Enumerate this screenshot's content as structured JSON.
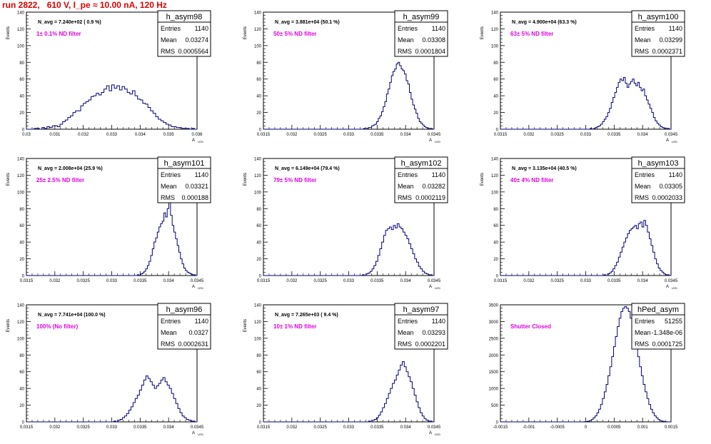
{
  "page_title": "run 2822,   610 V, I_pe ≈ 10.00 nA, 120 Hz",
  "colors": {
    "title": "#e00000",
    "annotation": "#e000e0",
    "histogram": "#00007a",
    "axis": "#000000"
  },
  "chart_data": [
    {
      "type": "histogram",
      "stat_name": "h_asym98",
      "stats": [
        [
          "Entries",
          "1140"
        ],
        [
          "Mean",
          "0.03274"
        ],
        [
          "RMS",
          "0.0005564"
        ]
      ],
      "navg_label": "N_avg = 7.240e+02 ( 0.9 %)",
      "filter_label": "1± 0.1% ND filter",
      "xlabel": "A",
      "xlabel_sub": "LED",
      "ylabel": "Events",
      "xlim": [
        0.03,
        0.036
      ],
      "ylim": [
        0,
        140
      ],
      "xticks": [
        "0.03",
        "0.031",
        "0.032",
        "0.033",
        "0.034",
        "0.035",
        "0.036"
      ],
      "yticks": [
        "0",
        "20",
        "40",
        "60",
        "80",
        "100",
        "120",
        "140"
      ],
      "counts": [
        0,
        0,
        0,
        1,
        1,
        0,
        2,
        1,
        3,
        2,
        4,
        4,
        3,
        6,
        9,
        11,
        14,
        16,
        20,
        22,
        22,
        28,
        31,
        33,
        35,
        39,
        40,
        43,
        41,
        44,
        48,
        52,
        46,
        53,
        49,
        52,
        47,
        51,
        48,
        44,
        42,
        46,
        40,
        36,
        35,
        31,
        30,
        26,
        22,
        19,
        15,
        12,
        10,
        8,
        6,
        5,
        3,
        3,
        2,
        2,
        1,
        1,
        1,
        0,
        1,
        0
      ]
    },
    {
      "type": "histogram",
      "stat_name": "h_asym99",
      "stats": [
        [
          "Entries",
          "1140"
        ],
        [
          "Mean",
          "0.03308"
        ],
        [
          "RMS",
          "0.0001804"
        ]
      ],
      "navg_label": "N_avg = 3.881e+04 (50.1 %)",
      "filter_label": "50± 5% ND filter",
      "xlabel": "A",
      "xlabel_sub": "LED",
      "ylabel": "Events",
      "xlim": [
        0.0315,
        0.0345
      ],
      "ylim": [
        0,
        140
      ],
      "xticks": [
        "0.0315",
        "0.032",
        "0.0325",
        "0.033",
        "0.0335",
        "0.034",
        "0.0345"
      ],
      "yticks": [
        "0",
        "20",
        "40",
        "60",
        "80",
        "100",
        "120",
        "140"
      ],
      "counts": [
        0,
        0,
        0,
        0,
        0,
        0,
        0,
        0,
        0,
        0,
        0,
        0,
        0,
        0,
        0,
        0,
        0,
        0,
        0,
        0,
        0,
        0,
        0,
        0,
        0,
        0,
        0,
        0,
        0,
        0,
        0,
        0,
        0,
        0,
        0,
        0,
        0,
        0,
        0,
        0,
        0,
        0,
        0,
        0,
        0,
        0,
        0,
        0,
        0,
        0,
        0,
        0,
        0,
        0,
        0,
        0,
        0,
        0,
        0,
        0,
        0,
        1,
        0,
        1,
        2,
        2,
        4,
        5,
        6,
        9,
        13,
        16,
        21,
        27,
        33,
        42,
        48,
        56,
        64,
        69,
        72,
        78,
        80,
        76,
        72,
        70,
        66,
        58,
        54,
        44,
        36,
        29,
        24,
        19,
        13,
        9,
        7,
        5,
        3,
        2,
        1,
        1,
        1,
        0
      ]
    },
    {
      "type": "histogram",
      "stat_name": "h_asym100",
      "stats": [
        [
          "Entries",
          "1140"
        ],
        [
          "Mean",
          "0.03299"
        ],
        [
          "RMS",
          "0.0002371"
        ]
      ],
      "navg_label": "N_avg = 4.900e+04 (63.3 %)",
      "filter_label": "63± 5% ND filter",
      "xlabel": "A",
      "xlabel_sub": "LED",
      "ylabel": "Events",
      "xlim": [
        0.0315,
        0.0345
      ],
      "ylim": [
        0,
        140
      ],
      "xticks": [
        "0.0315",
        "0.032",
        "0.0325",
        "0.033",
        "0.0335",
        "0.034",
        "0.0345"
      ],
      "yticks": [
        "0",
        "20",
        "40",
        "60",
        "80",
        "100",
        "120",
        "140"
      ],
      "counts": [
        0,
        0,
        0,
        0,
        0,
        0,
        0,
        0,
        0,
        0,
        0,
        0,
        0,
        0,
        0,
        0,
        0,
        0,
        0,
        0,
        0,
        0,
        0,
        0,
        0,
        0,
        0,
        0,
        0,
        0,
        0,
        0,
        0,
        0,
        0,
        0,
        0,
        0,
        0,
        0,
        0,
        0,
        0,
        0,
        0,
        0,
        0,
        0,
        0,
        0,
        0,
        1,
        0,
        1,
        2,
        3,
        4,
        6,
        9,
        12,
        15,
        20,
        25,
        32,
        38,
        44,
        50,
        56,
        60,
        58,
        62,
        55,
        50,
        54,
        57,
        60,
        55,
        52,
        56,
        50,
        46,
        48,
        40,
        35,
        30,
        25,
        20,
        14,
        10,
        7,
        5,
        3,
        2,
        1,
        1,
        1,
        0
      ]
    },
    {
      "type": "histogram",
      "stat_name": "h_asym101",
      "stats": [
        [
          "Entries",
          "1140"
        ],
        [
          "Mean",
          "0.03321"
        ],
        [
          "RMS",
          "0.000188"
        ]
      ],
      "navg_label": "N_avg = 2.008e+04 (25.9 %)",
      "filter_label": "25± 2.5% ND filter",
      "xlabel": "A",
      "xlabel_sub": "LED",
      "ylabel": "Events",
      "xlim": [
        0.0315,
        0.0345
      ],
      "ylim": [
        0,
        140
      ],
      "xticks": [
        "0.0315",
        "0.032",
        "0.0325",
        "0.033",
        "0.0335",
        "0.034",
        "0.0345"
      ],
      "yticks": [
        "0",
        "20",
        "40",
        "60",
        "80",
        "100",
        "120",
        "140"
      ],
      "counts": [
        0,
        0,
        0,
        0,
        0,
        0,
        0,
        0,
        0,
        0,
        0,
        0,
        0,
        0,
        0,
        0,
        0,
        0,
        0,
        0,
        0,
        0,
        0,
        0,
        0,
        0,
        0,
        0,
        0,
        0,
        0,
        0,
        0,
        0,
        0,
        0,
        0,
        0,
        0,
        0,
        0,
        0,
        0,
        0,
        0,
        0,
        0,
        0,
        0,
        0,
        0,
        0,
        0,
        0,
        0,
        0,
        0,
        0,
        0,
        0,
        0,
        0,
        0,
        0,
        0,
        0,
        0,
        1,
        0,
        2,
        3,
        5,
        8,
        12,
        17,
        24,
        32,
        40,
        45,
        52,
        58,
        62,
        65,
        75,
        70,
        80,
        98,
        72,
        60,
        52,
        44,
        36,
        28,
        20,
        14,
        9,
        6,
        4,
        3,
        2,
        1,
        1,
        0
      ]
    },
    {
      "type": "histogram",
      "stat_name": "h_asym102",
      "stats": [
        [
          "Entries",
          "1140"
        ],
        [
          "Mean",
          "0.03282"
        ],
        [
          "RMS",
          "0.0002119"
        ]
      ],
      "navg_label": "N_avg = 6.149e+04 (79.4 %)",
      "filter_label": "79± 5% ND filter",
      "xlabel": "A",
      "xlabel_sub": "LED",
      "ylabel": "Events",
      "xlim": [
        0.0315,
        0.0345
      ],
      "ylim": [
        0,
        140
      ],
      "xticks": [
        "0.0315",
        "0.032",
        "0.0325",
        "0.033",
        "0.0335",
        "0.034",
        "0.0345"
      ],
      "yticks": [
        "0",
        "20",
        "40",
        "60",
        "80",
        "100",
        "120",
        "140"
      ],
      "counts": [
        0,
        0,
        0,
        0,
        0,
        0,
        0,
        0,
        0,
        0,
        0,
        0,
        0,
        0,
        0,
        0,
        0,
        0,
        0,
        0,
        0,
        0,
        0,
        0,
        0,
        0,
        0,
        0,
        0,
        0,
        0,
        0,
        0,
        0,
        0,
        0,
        0,
        0,
        0,
        0,
        0,
        0,
        0,
        0,
        0,
        0,
        0,
        0,
        0,
        0,
        0,
        1,
        0,
        2,
        3,
        5,
        8,
        12,
        17,
        24,
        32,
        40,
        48,
        54,
        56,
        58,
        55,
        60,
        57,
        62,
        58,
        56,
        52,
        48,
        44,
        38,
        32,
        26,
        20,
        16,
        11,
        8,
        5,
        3,
        2,
        1,
        1,
        0
      ]
    },
    {
      "type": "histogram",
      "stat_name": "h_asym103",
      "stats": [
        [
          "Entries",
          "1140"
        ],
        [
          "Mean",
          "0.03305"
        ],
        [
          "RMS",
          "0.0002033"
        ]
      ],
      "navg_label": "N_avg = 3.135e+04 (40.5 %)",
      "filter_label": "40± 4% ND filter",
      "xlabel": "A",
      "xlabel_sub": "LED",
      "ylabel": "Events",
      "xlim": [
        0.0315,
        0.0345
      ],
      "ylim": [
        0,
        140
      ],
      "xticks": [
        "0.0315",
        "0.032",
        "0.0325",
        "0.033",
        "0.0335",
        "0.034",
        "0.0345"
      ],
      "yticks": [
        "0",
        "20",
        "40",
        "60",
        "80",
        "100",
        "120",
        "140"
      ],
      "counts": [
        0,
        0,
        0,
        0,
        0,
        0,
        0,
        0,
        0,
        0,
        0,
        0,
        0,
        0,
        0,
        0,
        0,
        0,
        0,
        0,
        0,
        0,
        0,
        0,
        0,
        0,
        0,
        0,
        0,
        0,
        0,
        0,
        0,
        0,
        0,
        0,
        0,
        0,
        0,
        0,
        0,
        0,
        0,
        0,
        0,
        0,
        0,
        0,
        0,
        0,
        0,
        0,
        0,
        0,
        0,
        0,
        0,
        1,
        0,
        2,
        3,
        5,
        8,
        12,
        16,
        22,
        28,
        34,
        40,
        45,
        50,
        54,
        56,
        58,
        60,
        56,
        62,
        64,
        58,
        66,
        60,
        52,
        44,
        36,
        28,
        20,
        14,
        9,
        6,
        4,
        2,
        1,
        1,
        0
      ]
    },
    {
      "type": "histogram",
      "stat_name": "h_asym96",
      "stats": [
        [
          "Entries",
          "1140"
        ],
        [
          "Mean",
          "0.0327"
        ],
        [
          "RMS",
          "0.0002631"
        ]
      ],
      "navg_label": "N_avg = 7.741e+04 (100.0 %)",
      "filter_label": "100% (No filter)",
      "xlabel": "A",
      "xlabel_sub": "LED",
      "ylabel": "Events",
      "xlim": [
        0.0315,
        0.0345
      ],
      "ylim": [
        0,
        140
      ],
      "xticks": [
        "0.0315",
        "0.032",
        "0.0325",
        "0.033",
        "0.0335",
        "0.034",
        "0.0345"
      ],
      "yticks": [
        "0",
        "20",
        "40",
        "60",
        "80",
        "100",
        "120",
        "140"
      ],
      "counts": [
        0,
        0,
        0,
        0,
        0,
        0,
        0,
        0,
        0,
        0,
        0,
        0,
        0,
        0,
        0,
        0,
        0,
        0,
        0,
        0,
        0,
        0,
        0,
        0,
        0,
        0,
        0,
        0,
        0,
        0,
        0,
        0,
        0,
        0,
        0,
        0,
        0,
        0,
        0,
        0,
        0,
        1,
        0,
        2,
        3,
        5,
        7,
        10,
        14,
        18,
        23,
        28,
        32,
        38,
        44,
        50,
        55,
        52,
        48,
        44,
        40,
        43,
        46,
        50,
        53,
        48,
        44,
        40,
        34,
        28,
        22,
        16,
        11,
        7,
        5,
        3,
        2,
        1,
        1,
        0
      ]
    },
    {
      "type": "histogram",
      "stat_name": "h_asym97",
      "stats": [
        [
          "Entries",
          "1140"
        ],
        [
          "Mean",
          "0.03293"
        ],
        [
          "RMS",
          "0.0002201"
        ]
      ],
      "navg_label": "N_avg = 7.265e+03 ( 9.4 %)",
      "filter_label": "10± 1% ND filter",
      "xlabel": "A",
      "xlabel_sub": "LED",
      "ylabel": "Events",
      "xlim": [
        0.0315,
        0.0345
      ],
      "ylim": [
        0,
        140
      ],
      "xticks": [
        "0.0315",
        "0.032",
        "0.0325",
        "0.033",
        "0.0335",
        "0.034",
        "0.0345"
      ],
      "yticks": [
        "0",
        "20",
        "40",
        "60",
        "80",
        "100",
        "120",
        "140"
      ],
      "counts": [
        0,
        0,
        0,
        0,
        0,
        0,
        0,
        0,
        0,
        0,
        0,
        0,
        0,
        0,
        0,
        0,
        0,
        0,
        0,
        0,
        0,
        0,
        0,
        0,
        0,
        0,
        0,
        0,
        0,
        0,
        0,
        0,
        0,
        0,
        0,
        0,
        0,
        0,
        0,
        0,
        0,
        0,
        0,
        0,
        0,
        0,
        0,
        0,
        0,
        0,
        0,
        0,
        0,
        1,
        0,
        2,
        3,
        5,
        8,
        12,
        17,
        22,
        28,
        34,
        40,
        46,
        50,
        56,
        62,
        68,
        72,
        66,
        60,
        54,
        48,
        40,
        32,
        24,
        17,
        11,
        7,
        4,
        2,
        1,
        1,
        0
      ]
    },
    {
      "type": "histogram",
      "stat_name": "hPed_asym",
      "stats": [
        [
          "Entries",
          "51255"
        ],
        [
          "Mean",
          "-1.348e-06"
        ],
        [
          "RMS",
          "0.0001725"
        ]
      ],
      "navg_label": "",
      "filter_label": "Shutter Closed",
      "xlabel": "",
      "xlabel_sub": "",
      "ylabel": "",
      "xlim": [
        -0.0015,
        0.0015
      ],
      "ylim": [
        0,
        3500
      ],
      "xticks": [
        "-0.0015",
        "-0.001",
        "-0.0005",
        "0",
        "0.0005",
        "0.001",
        "0.0015"
      ],
      "yticks": [
        "0",
        "500",
        "1000",
        "1500",
        "2000",
        "2500",
        "3000",
        "3500"
      ],
      "counts": [
        0,
        0,
        0,
        0,
        0,
        0,
        0,
        0,
        0,
        0,
        0,
        0,
        0,
        0,
        0,
        0,
        0,
        0,
        0,
        0,
        0,
        0,
        0,
        0,
        0,
        0,
        0,
        0,
        0,
        0,
        0,
        0,
        0,
        0,
        0,
        0,
        0,
        0,
        0,
        0,
        0,
        0,
        0,
        0,
        0,
        5,
        10,
        20,
        40,
        70,
        120,
        180,
        270,
        380,
        520,
        700,
        900,
        1120,
        1380,
        1650,
        1950,
        2250,
        2550,
        2850,
        3100,
        3300,
        3400,
        3450,
        3400,
        3300,
        3100,
        2850,
        2550,
        2250,
        1950,
        1650,
        1380,
        1120,
        900,
        700,
        520,
        380,
        270,
        180,
        120,
        70,
        40,
        20,
        10,
        5,
        0,
        0
      ]
    }
  ]
}
